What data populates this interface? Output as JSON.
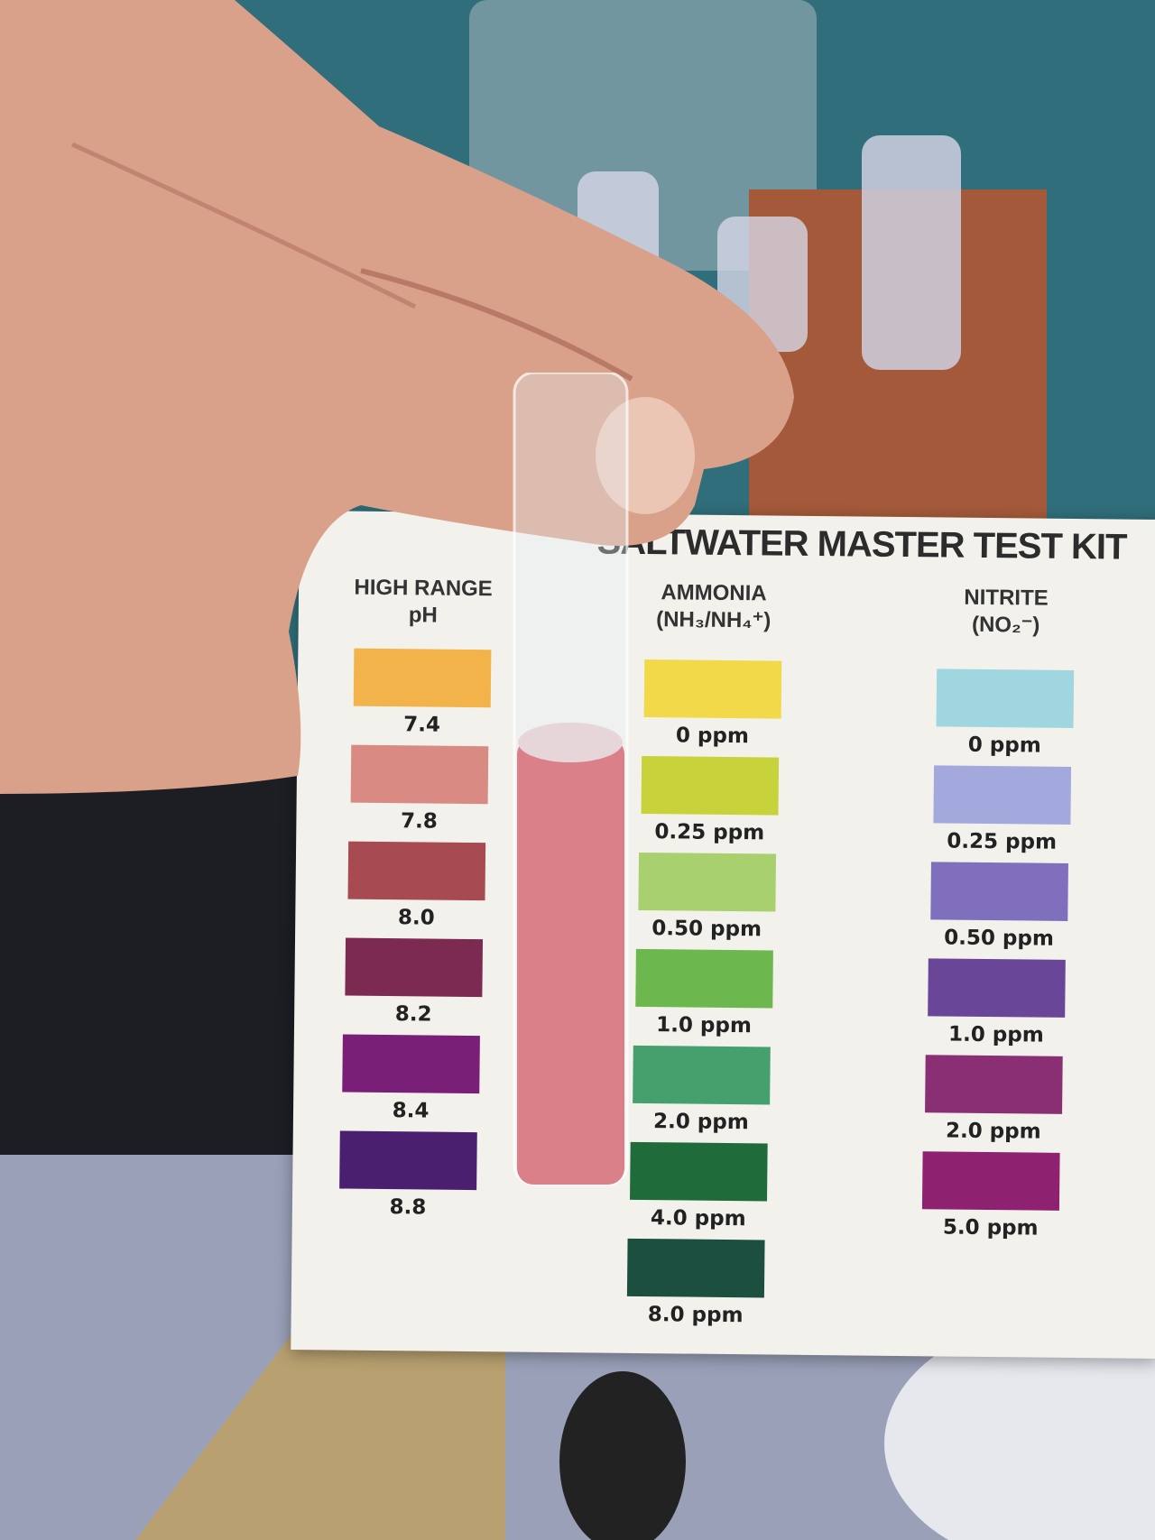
{
  "card": {
    "title": "SALTWATER MASTER TEST KIT",
    "columns": [
      {
        "heading": [
          "HIGH RANGE",
          "pH"
        ],
        "swatches": [
          {
            "label": "7.4",
            "color": "#f2b34a"
          },
          {
            "label": "7.8",
            "color": "#d98a82"
          },
          {
            "label": "8.0",
            "color": "#a84a52"
          },
          {
            "label": "8.2",
            "color": "#7d2a52"
          },
          {
            "label": "8.4",
            "color": "#7a1f78"
          },
          {
            "label": "8.8",
            "color": "#4a1f70"
          }
        ]
      },
      {
        "heading": [
          "AMMONIA",
          "(NH₃/NH₄⁺)"
        ],
        "swatches": [
          {
            "label": "0 ppm",
            "color": "#f1d94a"
          },
          {
            "label": "0.25 ppm",
            "color": "#c8d23a"
          },
          {
            "label": "0.50 ppm",
            "color": "#a9d06e"
          },
          {
            "label": "1.0 ppm",
            "color": "#6cb84e"
          },
          {
            "label": "2.0 ppm",
            "color": "#46a06e"
          },
          {
            "label": "4.0 ppm",
            "color": "#1f6b3a"
          },
          {
            "label": "8.0 ppm",
            "color": "#1c4f40"
          }
        ]
      },
      {
        "heading": [
          "NITRITE",
          "(NO₂⁻)"
        ],
        "swatches": [
          {
            "label": "0 ppm",
            "color": "#9fd6df"
          },
          {
            "label": "0.25 ppm",
            "color": "#a3a8dd"
          },
          {
            "label": "0.50 ppm",
            "color": "#7f6fbc"
          },
          {
            "label": "1.0 ppm",
            "color": "#6a4698"
          },
          {
            "label": "2.0 ppm",
            "color": "#8a2f74"
          },
          {
            "label": "5.0 ppm",
            "color": "#8e2270"
          }
        ]
      }
    ]
  },
  "tube": {
    "liquid_color": "#d98088"
  },
  "hand": {
    "skin_color": "#d9a08a"
  }
}
